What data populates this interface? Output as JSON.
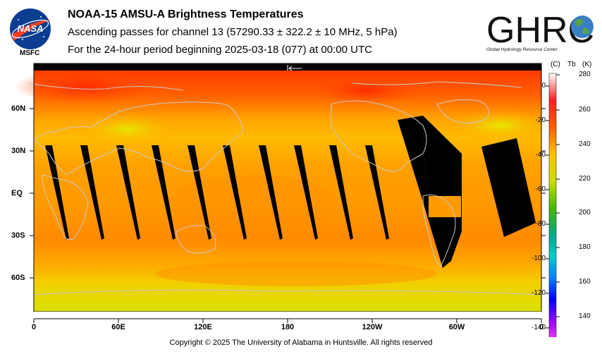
{
  "header": {
    "title": "NOAA-15 AMSU-A Brightness Temperatures",
    "subtitle": "Ascending passes for channel 13 (57290.33 ± 322.2 ± 10 MHz, 5 hPa)",
    "period": "For the 24-hour period beginning 2025-03-18 (077) at 00:00 UTC"
  },
  "logos": {
    "nasa_text": "NASA",
    "nasa_sub": "MSFC",
    "ghrc_text": "GHRC",
    "ghrc_sub": "Global Hydrology Resource Center"
  },
  "map": {
    "lat_labels": [
      "60N",
      "30N",
      "EQ",
      "30S",
      "60S"
    ],
    "lon_labels": [
      "0",
      "60E",
      "120E",
      "180",
      "120W",
      "60W",
      "0"
    ]
  },
  "colorbar": {
    "unit_c": "(C)",
    "unit_tb": "Tb",
    "unit_k": "(K)",
    "celsius_ticks": [
      "0",
      "-20",
      "-40",
      "-60",
      "-80",
      "-100",
      "-120",
      "-140"
    ],
    "kelvin_ticks": [
      "280",
      "260",
      "240",
      "220",
      "200",
      "180",
      "160",
      "140"
    ],
    "colors": [
      "#ffffff",
      "#ff0000",
      "#ff8800",
      "#ffcc00",
      "#ccdd00",
      "#55cc00",
      "#00aa55",
      "#00cccc",
      "#0088ff",
      "#0000ff",
      "#9900ff",
      "#ff33ff"
    ]
  },
  "footer": {
    "copyright": "Copyright © 2025 The University of Alabama in Huntsville.  All rights reserved"
  }
}
